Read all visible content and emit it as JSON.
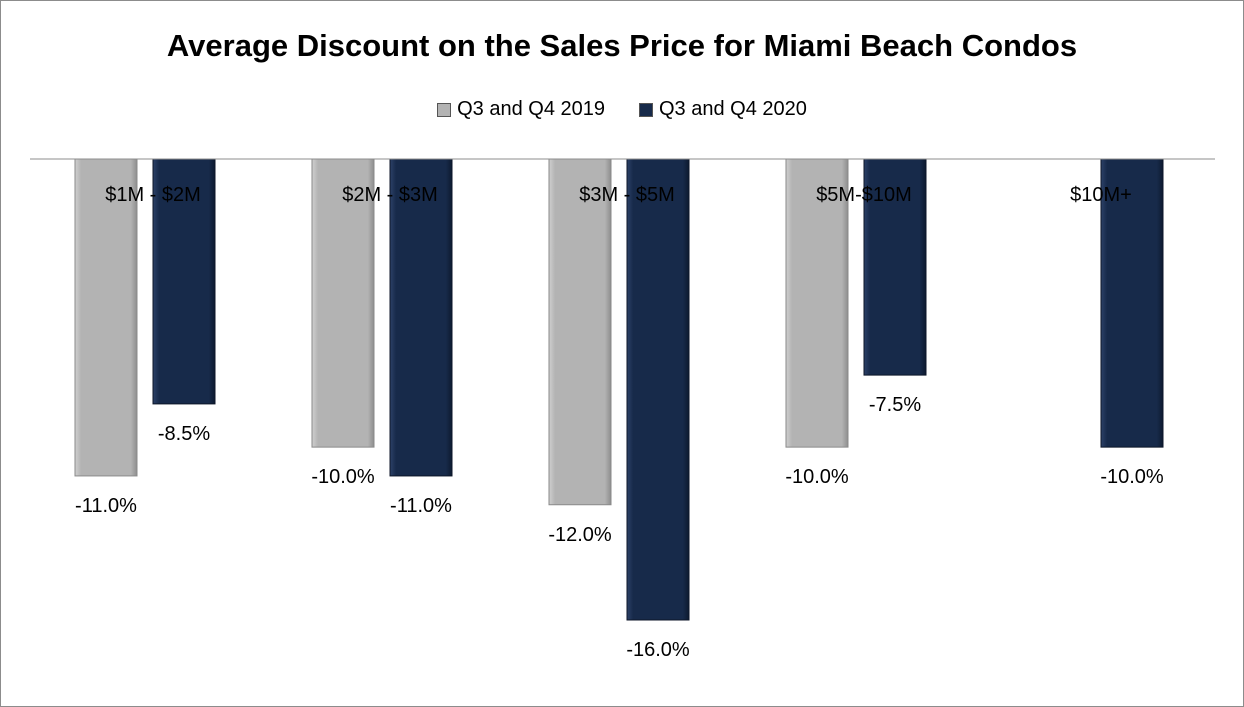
{
  "chart_data": {
    "type": "bar",
    "title": "Average Discount on the Sales Price for Miami Beach Condos",
    "categories": [
      "$1M - $2M",
      "$2M - $3M",
      "$3M - $5M",
      "$5M-$10M",
      "$10M+"
    ],
    "series": [
      {
        "name": "Q3 and Q4 2019",
        "color": "#b3b3b3",
        "values": [
          -11.0,
          -10.0,
          -12.0,
          -10.0,
          null
        ],
        "labels": [
          "-11.0%",
          "-10.0%",
          "-12.0%",
          "-10.0%",
          ""
        ]
      },
      {
        "name": "Q3 and Q4 2020",
        "color": "#172a4a",
        "values": [
          -8.5,
          -11.0,
          -16.0,
          -7.5,
          -10.0
        ],
        "labels": [
          "-8.5%",
          "-11.0%",
          "-16.0%",
          "-7.5%",
          "-10.0%"
        ]
      }
    ],
    "ylim": [
      -16.0,
      0
    ],
    "legend_position": "top",
    "grid": false,
    "xlabel": "",
    "ylabel": ""
  }
}
